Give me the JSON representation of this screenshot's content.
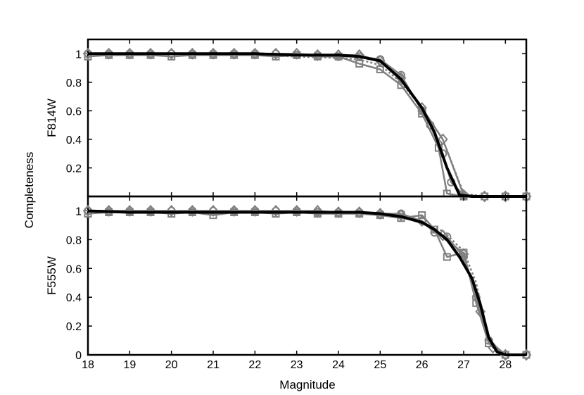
{
  "figure": {
    "xlabel": "Magnitude",
    "shared_ylabel": "Completeness"
  },
  "chart_data": [
    {
      "type": "line",
      "panel_label": "F814W",
      "xlim": [
        18,
        28.5
      ],
      "ylim": [
        0,
        1.1
      ],
      "xticks": [
        18,
        19,
        20,
        21,
        22,
        23,
        24,
        25,
        26,
        27,
        28
      ],
      "yticks": [
        0.2,
        0.4,
        0.6,
        0.8,
        1
      ],
      "ytick_labels": [
        "0.2",
        "0.4",
        "0.6",
        "0.8",
        "1"
      ],
      "colors": {
        "mean": "#000000",
        "fields": "#808080"
      },
      "series": [
        {
          "marker": "circle",
          "x": [
            18,
            18.5,
            19,
            19.5,
            20,
            20.5,
            21,
            21.5,
            22,
            22.5,
            23,
            23.5,
            24,
            24.5,
            25,
            25.5,
            26,
            26.2,
            26.5,
            26.7,
            27,
            27.5,
            28,
            28.5
          ],
          "y": [
            1,
            1,
            1,
            1,
            1,
            1,
            1,
            1,
            1,
            1,
            0.99,
            0.99,
            0.98,
            0.98,
            0.96,
            0.85,
            0.6,
            0.5,
            0.3,
            0.1,
            0.01,
            0,
            0,
            0
          ]
        },
        {
          "marker": "square",
          "x": [
            18,
            18.5,
            19,
            19.5,
            20,
            20.5,
            21,
            21.5,
            22,
            22.5,
            23,
            23.5,
            24,
            24.5,
            25,
            25.5,
            26,
            26.4,
            26.6,
            27,
            27.5,
            28,
            28.5
          ],
          "y": [
            0.98,
            0.99,
            0.99,
            0.99,
            0.98,
            0.99,
            0.99,
            0.99,
            0.99,
            0.98,
            0.99,
            0.98,
            0.98,
            0.93,
            0.89,
            0.78,
            0.58,
            0.34,
            0.02,
            0,
            0,
            0,
            0
          ]
        },
        {
          "marker": "diamond",
          "x": [
            18,
            18.5,
            19,
            19.5,
            20,
            20.5,
            21,
            21.5,
            22,
            22.5,
            23,
            23.5,
            24,
            24.5,
            25,
            25.5,
            26,
            26.5,
            27,
            27.5,
            28,
            28.5
          ],
          "y": [
            1,
            1,
            1,
            1,
            1,
            1,
            1,
            1,
            1,
            1,
            1,
            0.99,
            0.99,
            0.99,
            0.95,
            0.83,
            0.62,
            0.4,
            0.01,
            0,
            0,
            0
          ]
        },
        {
          "marker": "none",
          "x": [
            18,
            19,
            20,
            21,
            22,
            23,
            24,
            24.5,
            25,
            25.5,
            26,
            26.5,
            27,
            27.5,
            28,
            28.5
          ],
          "y": [
            1,
            1,
            1,
            1,
            0.99,
            0.98,
            0.97,
            0.96,
            0.92,
            0.8,
            0.62,
            0.4,
            0.02,
            0,
            0,
            0
          ]
        },
        {
          "marker": "none",
          "mean": true,
          "x": [
            18,
            19,
            20,
            21,
            22,
            23,
            24,
            24.5,
            25,
            25.5,
            26,
            26.3,
            26.6,
            26.9,
            27.2,
            27.5,
            28,
            28.5
          ],
          "y": [
            1,
            1,
            1,
            1,
            1,
            0.99,
            0.99,
            0.98,
            0.95,
            0.82,
            0.62,
            0.45,
            0.2,
            0.01,
            0,
            0,
            0,
            0
          ]
        }
      ]
    },
    {
      "type": "line",
      "panel_label": "F555W",
      "xlim": [
        18,
        28.5
      ],
      "ylim": [
        0,
        1.1
      ],
      "xticks": [
        18,
        19,
        20,
        21,
        22,
        23,
        24,
        25,
        26,
        27,
        28
      ],
      "xtick_labels": [
        "18",
        "19",
        "20",
        "21",
        "22",
        "23",
        "24",
        "25",
        "26",
        "27",
        "28"
      ],
      "yticks": [
        0,
        0.2,
        0.4,
        0.6,
        0.8,
        1
      ],
      "ytick_labels": [
        "0",
        "0.2",
        "0.4",
        "0.6",
        "0.8",
        "1"
      ],
      "colors": {
        "mean": "#000000",
        "fields": "#808080"
      },
      "series": [
        {
          "marker": "circle",
          "x": [
            18,
            18.5,
            19,
            19.5,
            20,
            20.5,
            21,
            21.5,
            22,
            22.5,
            23,
            23.5,
            24,
            24.5,
            25,
            25.5,
            26,
            26.3,
            26.6,
            27,
            27.3,
            27.6,
            28,
            28.5
          ],
          "y": [
            1,
            1,
            1,
            1,
            1,
            1,
            1,
            1,
            1,
            1,
            1,
            0.99,
            0.99,
            0.99,
            0.98,
            0.98,
            0.93,
            0.85,
            0.82,
            0.68,
            0.4,
            0.1,
            0,
            0
          ]
        },
        {
          "marker": "square",
          "x": [
            18,
            18.5,
            19,
            19.5,
            20,
            20.5,
            21,
            21.5,
            22,
            22.5,
            23,
            23.5,
            24,
            24.5,
            25,
            25.5,
            26,
            26.3,
            26.6,
            27,
            27.3,
            27.6,
            28,
            28.5
          ],
          "y": [
            0.98,
            0.99,
            0.99,
            0.99,
            0.98,
            0.99,
            0.97,
            0.99,
            0.99,
            0.98,
            0.99,
            0.98,
            0.98,
            0.98,
            0.97,
            0.95,
            0.97,
            0.87,
            0.68,
            0.71,
            0.36,
            0.08,
            0,
            0
          ]
        },
        {
          "marker": "diamond",
          "x": [
            18,
            18.5,
            19,
            19.5,
            20,
            20.5,
            21,
            21.5,
            22,
            22.5,
            23,
            23.5,
            24,
            24.5,
            25,
            25.5,
            26,
            26.5,
            27,
            27.4,
            27.7,
            28,
            28.5
          ],
          "y": [
            1,
            1,
            1,
            1,
            1,
            1,
            1,
            1,
            1,
            1,
            1,
            1,
            0.99,
            0.99,
            0.98,
            0.97,
            0.93,
            0.83,
            0.7,
            0.3,
            0.05,
            0,
            0
          ]
        },
        {
          "marker": "none",
          "x": [
            18,
            19,
            20,
            21,
            22,
            23,
            24,
            25,
            25.5,
            26,
            26.5,
            27,
            27.3,
            27.6,
            28,
            28.5
          ],
          "y": [
            1,
            1,
            1,
            0.99,
            0.99,
            0.99,
            0.99,
            0.98,
            0.96,
            0.92,
            0.86,
            0.72,
            0.5,
            0.1,
            0,
            0
          ]
        },
        {
          "marker": "none",
          "mean": true,
          "x": [
            18,
            19,
            20,
            21,
            22,
            23,
            24,
            24.5,
            25,
            25.5,
            26,
            26.3,
            26.6,
            26.9,
            27.2,
            27.4,
            27.6,
            27.8,
            28,
            28.5
          ],
          "y": [
            1,
            0.99,
            0.99,
            0.99,
            0.99,
            0.99,
            0.99,
            0.99,
            0.98,
            0.96,
            0.92,
            0.87,
            0.8,
            0.68,
            0.53,
            0.35,
            0.12,
            0.02,
            0,
            0
          ]
        }
      ]
    }
  ]
}
